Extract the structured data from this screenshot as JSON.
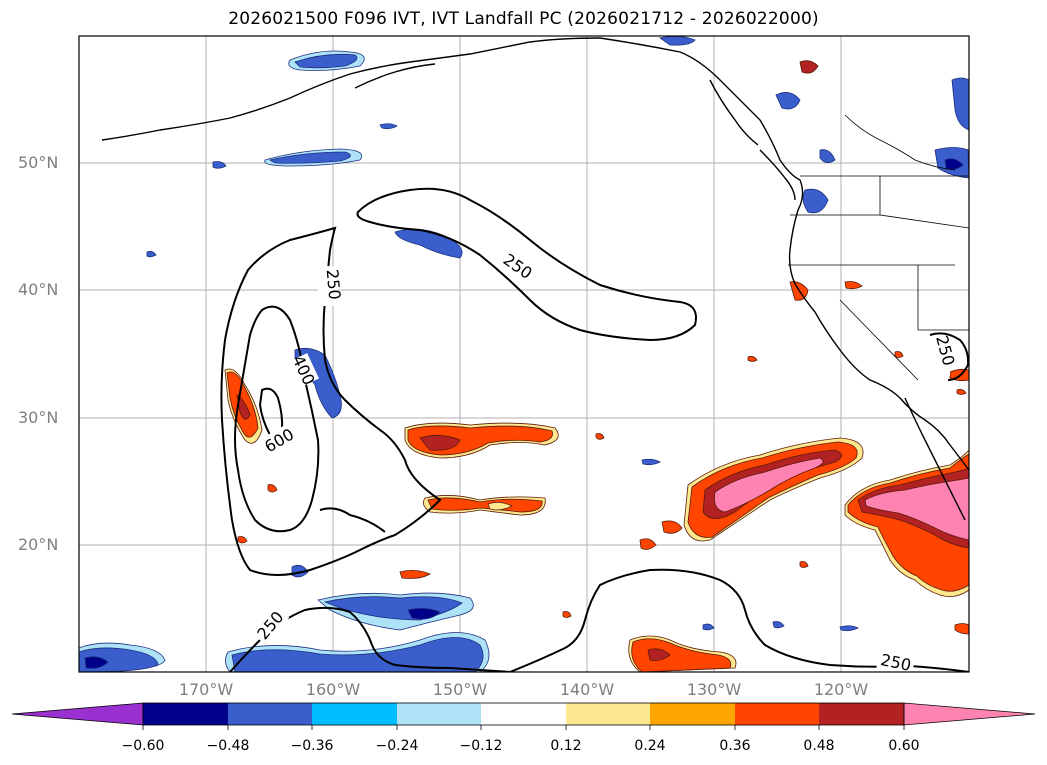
{
  "title": "2026021500 F096 IVT, IVT Landfall PC (2026021712 - 2026022000)",
  "lat_labels": [
    "50°N",
    "40°N",
    "30°N",
    "20°N"
  ],
  "lon_labels": [
    "170°W",
    "160°W",
    "150°W",
    "140°W",
    "130°W",
    "120°W"
  ],
  "contour_labels": [
    "250",
    "250",
    "400",
    "600",
    "250",
    "250",
    "250"
  ],
  "colorbar": {
    "ticks": [
      "−0.60",
      "−0.48",
      "−0.36",
      "−0.24",
      "−0.12",
      "0.12",
      "0.24",
      "0.36",
      "0.48",
      "0.60"
    ],
    "colors": [
      "#9b30d0",
      "#00008b",
      "#3a5fcd",
      "#00bfff",
      "#aee3f7",
      "#ffffff",
      "#fee88f",
      "#ffa500",
      "#ff4500",
      "#b22222",
      "#ff83b0"
    ]
  }
}
